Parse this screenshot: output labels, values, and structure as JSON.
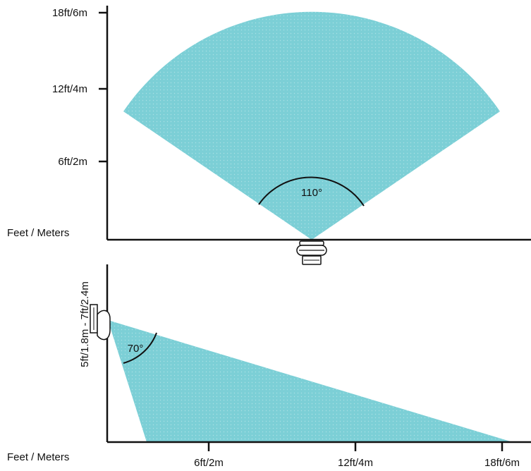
{
  "colors": {
    "coverage_fill": "#7ccfd6",
    "axis": "#111111",
    "text": "#111111",
    "sensor_outline": "#111111"
  },
  "top_view": {
    "y_ticks": [
      "18ft/6m",
      "12ft/4m",
      "6ft/2m"
    ],
    "axis_title": "Feet / Meters",
    "angle_label": "110°"
  },
  "side_view": {
    "y_axis_title": "5ft/1.8m - 7ft/2.4m",
    "x_axis_title": "Feet / Meters",
    "x_ticks": [
      "6ft/2m",
      "12ft/4m",
      "18ft/6m"
    ],
    "angle_label": "70°"
  }
}
